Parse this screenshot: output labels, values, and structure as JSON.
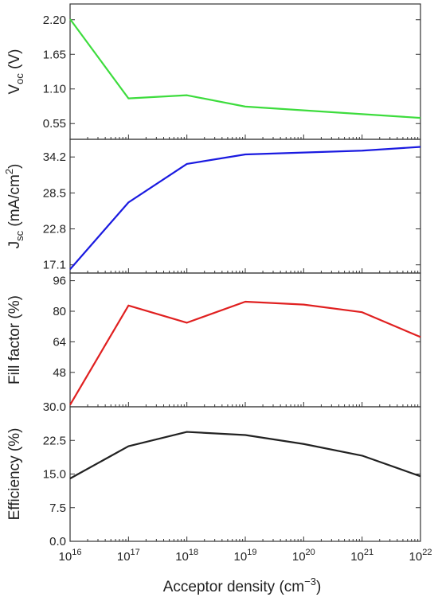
{
  "chart_data": {
    "type": "line",
    "xlabel": "Acceptor density (cm",
    "xlabel_sup": "−3",
    "xlabel_end": ")",
    "x_scale": "log",
    "x": [
      1e+16,
      1e+17,
      1e+18,
      1e+19,
      1e+20,
      1e+21,
      1e+22
    ],
    "x_ticks": [
      {
        "base": "10",
        "exp": "16"
      },
      {
        "base": "10",
        "exp": "17"
      },
      {
        "base": "10",
        "exp": "18"
      },
      {
        "base": "10",
        "exp": "19"
      },
      {
        "base": "10",
        "exp": "20"
      },
      {
        "base": "10",
        "exp": "21"
      },
      {
        "base": "10",
        "exp": "22"
      }
    ],
    "panels": [
      {
        "id": "voc",
        "ylabel_main": "V",
        "ylabel_sub": "oc",
        "ylabel_tail": " (V)",
        "ylim": [
          0.3,
          2.45
        ],
        "yticks": [
          0.55,
          1.1,
          1.65,
          2.2
        ],
        "ytick_labels": [
          "0.55",
          "1.10",
          "1.65",
          "2.20"
        ],
        "color": "#3ddc3d",
        "values": [
          2.21,
          0.95,
          1.0,
          0.82,
          0.76,
          0.7,
          0.64
        ]
      },
      {
        "id": "jsc",
        "ylabel_main": "J",
        "ylabel_sub": "sc",
        "ylabel_tail": " (mA/cm",
        "ylabel_sup": "2",
        "ylabel_end": ")",
        "ylim": [
          15.8,
          37.0
        ],
        "yticks": [
          17.1,
          22.8,
          28.5,
          34.2
        ],
        "ytick_labels": [
          "17.1",
          "22.8",
          "28.5",
          "34.2"
        ],
        "color": "#1a1ae0",
        "values": [
          16.4,
          27.0,
          33.1,
          34.6,
          34.9,
          35.2,
          35.8
        ]
      },
      {
        "id": "ff",
        "ylabel_main": "Fill factor (%)",
        "ylim": [
          30.0,
          100.0
        ],
        "yticks": [
          30.0,
          48,
          64,
          80,
          96
        ],
        "ytick_labels": [
          "30.0",
          "48",
          "64",
          "80",
          "96"
        ],
        "color": "#e02020",
        "values": [
          31.0,
          83.0,
          74.0,
          85.0,
          83.5,
          79.5,
          66.5
        ]
      },
      {
        "id": "eff",
        "ylabel_main": "Efficiency (%)",
        "ylim": [
          0.0,
          30.0
        ],
        "yticks": [
          0.0,
          7.5,
          15.0,
          22.5
        ],
        "ytick_labels": [
          "0.0",
          "7.5",
          "15.0",
          "22.5"
        ],
        "color": "#222222",
        "values": [
          14.0,
          21.2,
          24.4,
          23.7,
          21.7,
          19.1,
          14.5
        ]
      }
    ]
  }
}
